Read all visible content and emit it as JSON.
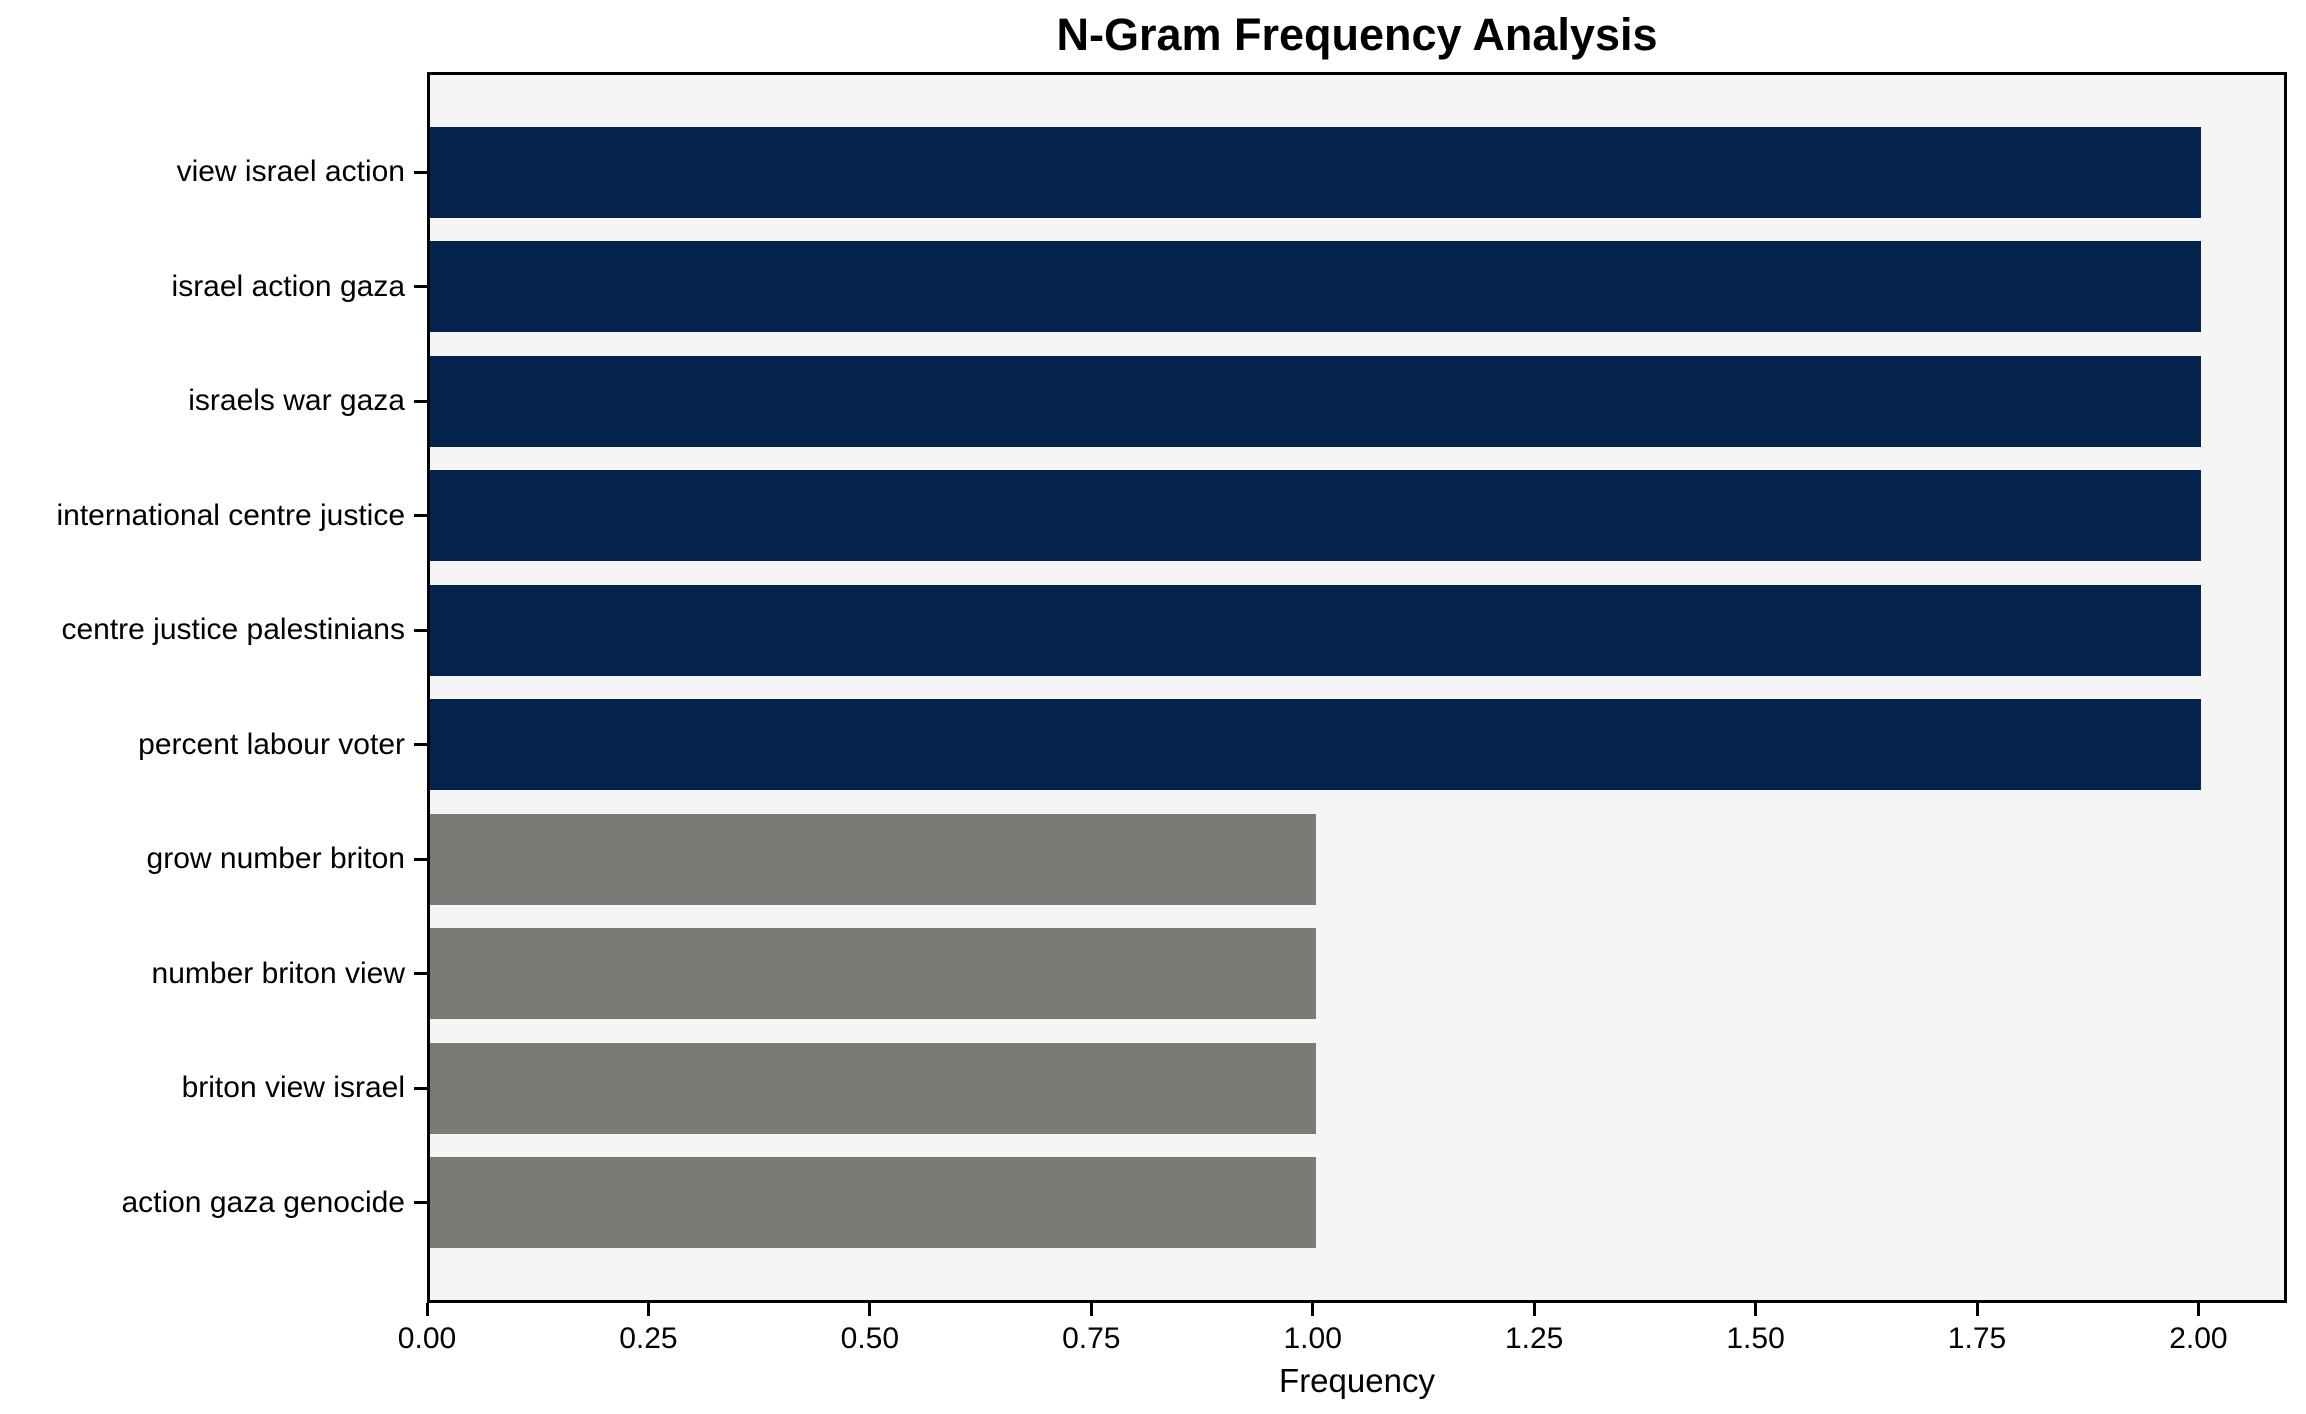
{
  "chart_data": {
    "type": "bar",
    "orientation": "horizontal",
    "title": "N-Gram Frequency Analysis",
    "xlabel": "Frequency",
    "ylabel": "",
    "categories": [
      "view israel action",
      "israel action gaza",
      "israels war gaza",
      "international centre justice",
      "centre justice palestinians",
      "percent labour voter",
      "grow number briton",
      "number briton view",
      "briton view israel",
      "action gaza genocide"
    ],
    "values": [
      2,
      2,
      2,
      2,
      2,
      2,
      1,
      1,
      1,
      1
    ],
    "bar_colors": [
      "#03234d",
      "#03234d",
      "#03234d",
      "#03234d",
      "#03234d",
      "#03234d",
      "#7b7a77",
      "#7b7a77",
      "#7b7a77",
      "#7b7a77"
    ],
    "xlim": [
      0,
      2.1
    ],
    "xtick_values": [
      0,
      0.25,
      0.5,
      0.75,
      1.0,
      1.25,
      1.5,
      1.75,
      2.0
    ],
    "xtick_labels": [
      "0.00",
      "0.25",
      "0.50",
      "0.75",
      "1.00",
      "1.25",
      "1.50",
      "1.75",
      "2.00"
    ],
    "grid": false,
    "legend": null,
    "colors": {
      "high_frequency_bar": "#03234d",
      "low_frequency_bar": "#7b7a77",
      "plot_background": "#f5f5f5",
      "figure_background": "#ffffff",
      "axis_and_text": "#000000"
    }
  }
}
